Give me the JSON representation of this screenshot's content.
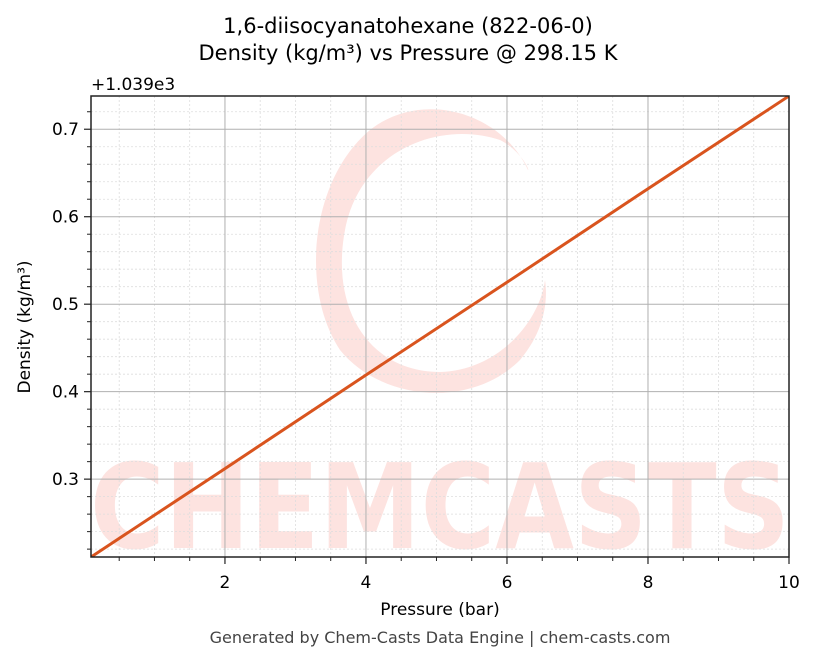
{
  "title_line1": "1,6-diisocyanatohexane (822-06-0)",
  "title_line2": "Density (kg/m³) vs Pressure @ 298.15 K",
  "footer": "Generated by Chem-Casts Data Engine | chem-casts.com",
  "watermark": "CHEMCASTS",
  "colors": {
    "line": "#d9541e",
    "watermark": "#fde3e0",
    "grid_major": "#b0b0b0",
    "grid_minor": "#dddddd",
    "axes": "#222222"
  },
  "chart_data": {
    "type": "line",
    "title": "1,6-diisocyanatohexane (822-06-0)\nDensity (kg/m³) vs Pressure @ 298.15 K",
    "xlabel": "Pressure (bar)",
    "ylabel": "Density (kg/m³)",
    "y_offset_label": "+1.039e3",
    "y_offset": 1039,
    "xlim": [
      0.1,
      10
    ],
    "ylim": [
      0.211,
      0.738
    ],
    "x_ticks": [
      2,
      4,
      6,
      8,
      10
    ],
    "x_tick_labels": [
      "2",
      "4",
      "6",
      "8",
      "10"
    ],
    "y_ticks": [
      0.3,
      0.4,
      0.5,
      0.6,
      0.7
    ],
    "y_tick_labels": [
      "0.3",
      "0.4",
      "0.5",
      "0.6",
      "0.7"
    ],
    "grid": true,
    "minor_grid": true,
    "legend": null,
    "series": [
      {
        "name": "Density",
        "color": "#d9541e",
        "x": [
          0.1,
          2,
          4,
          6,
          8,
          10
        ],
        "y": [
          0.211,
          0.312,
          0.419,
          0.525,
          0.632,
          0.738
        ],
        "note": "y values shown relative to offset +1039 kg/m³"
      }
    ]
  }
}
